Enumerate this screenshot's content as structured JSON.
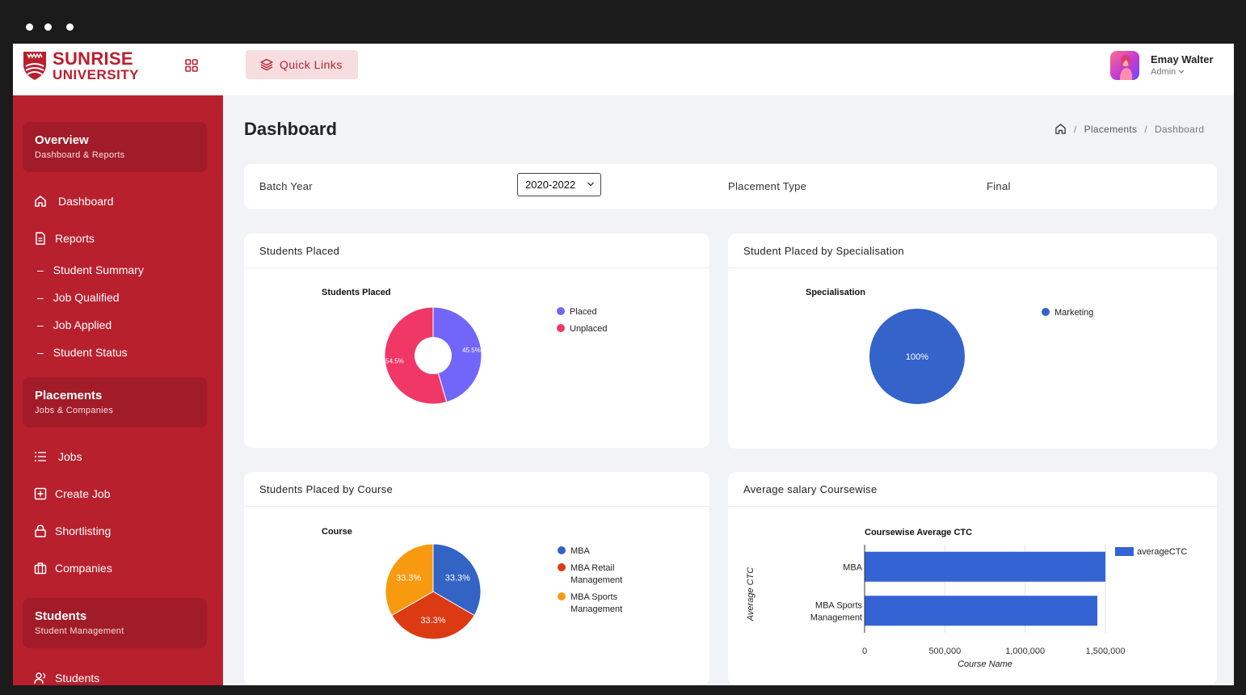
{
  "brand": {
    "line1": "SUNRISE",
    "line2": "UNIVERSITY"
  },
  "sidebar": {
    "sections": [
      {
        "title": "Overview",
        "subtitle": "Dashboard & Reports"
      },
      {
        "title": "Placements",
        "subtitle": "Jobs & Companies"
      },
      {
        "title": "Students",
        "subtitle": "Student Management"
      }
    ],
    "items": [
      {
        "label": "Dashboard",
        "icon": "home-icon"
      },
      {
        "label": "Reports",
        "icon": "document-icon"
      },
      {
        "label": "Jobs",
        "icon": "list-icon"
      },
      {
        "label": "Create Job",
        "icon": "plus-square-icon"
      },
      {
        "label": "Shortlisting",
        "icon": "lock-icon"
      },
      {
        "label": "Companies",
        "icon": "briefcase-icon"
      },
      {
        "label": "Students",
        "icon": "users-icon"
      }
    ],
    "report_subitems": [
      "Student Summary",
      "Job Qualified",
      "Job Applied",
      "Student Status"
    ]
  },
  "topbar": {
    "quick_links": "Quick Links",
    "user": {
      "name": "Emay Walter",
      "role": "Admin"
    }
  },
  "page": {
    "title": "Dashboard",
    "breadcrumb": [
      "Placements",
      "Dashboard"
    ]
  },
  "filter": {
    "batch_label": "Batch Year",
    "batch_value": "2020-2022",
    "type_label": "Placement Type",
    "type_value": "Final"
  },
  "cards": {
    "placed": "Students Placed",
    "specialisation": "Student Placed by Specialisation",
    "course": "Students Placed by Course",
    "salary": "Average salary Coursewise"
  },
  "chart_data": [
    {
      "type": "pie",
      "title": "Students Placed",
      "donut": true,
      "labels": [
        "Placed",
        "Unplaced"
      ],
      "values": [
        45.5,
        54.5
      ],
      "value_labels": [
        "45.5%",
        "54.5%"
      ],
      "colors": [
        "#7166f9",
        "#f03765"
      ]
    },
    {
      "type": "pie",
      "title": "Specialisation",
      "labels": [
        "Marketing"
      ],
      "values": [
        100
      ],
      "value_labels": [
        "100%"
      ],
      "colors": [
        "#3463c9"
      ]
    },
    {
      "type": "pie",
      "title": "Course",
      "labels": [
        "MBA",
        "MBA Retail Management",
        "MBA Sports Management"
      ],
      "legend_lines": [
        [
          "MBA"
        ],
        [
          "MBA Retail",
          "Management"
        ],
        [
          "MBA Sports",
          "Management"
        ]
      ],
      "values": [
        33.3,
        33.3,
        33.3
      ],
      "value_labels": [
        "33.3%",
        "33.3%",
        "33.3%"
      ],
      "colors": [
        "#3263c5",
        "#dc3a12",
        "#f89a10"
      ]
    },
    {
      "type": "bar",
      "orientation": "horizontal",
      "title": "Coursewise Average CTC",
      "xlabel": "Course Name",
      "ylabel": "Average CTC",
      "categories": [
        [
          "MBA"
        ],
        [
          "MBA Sports",
          "Management"
        ]
      ],
      "series": [
        {
          "name": "averageCTC",
          "values": [
            1500000,
            1450000
          ],
          "color": "#3463d4"
        }
      ],
      "xlim": [
        0,
        1500000
      ],
      "xticks": [
        0,
        500000,
        1000000,
        1500000
      ],
      "xtick_labels": [
        "0",
        "500,000",
        "1,000,000",
        "1,500,000"
      ],
      "grid": true,
      "legend": "top-right"
    }
  ]
}
